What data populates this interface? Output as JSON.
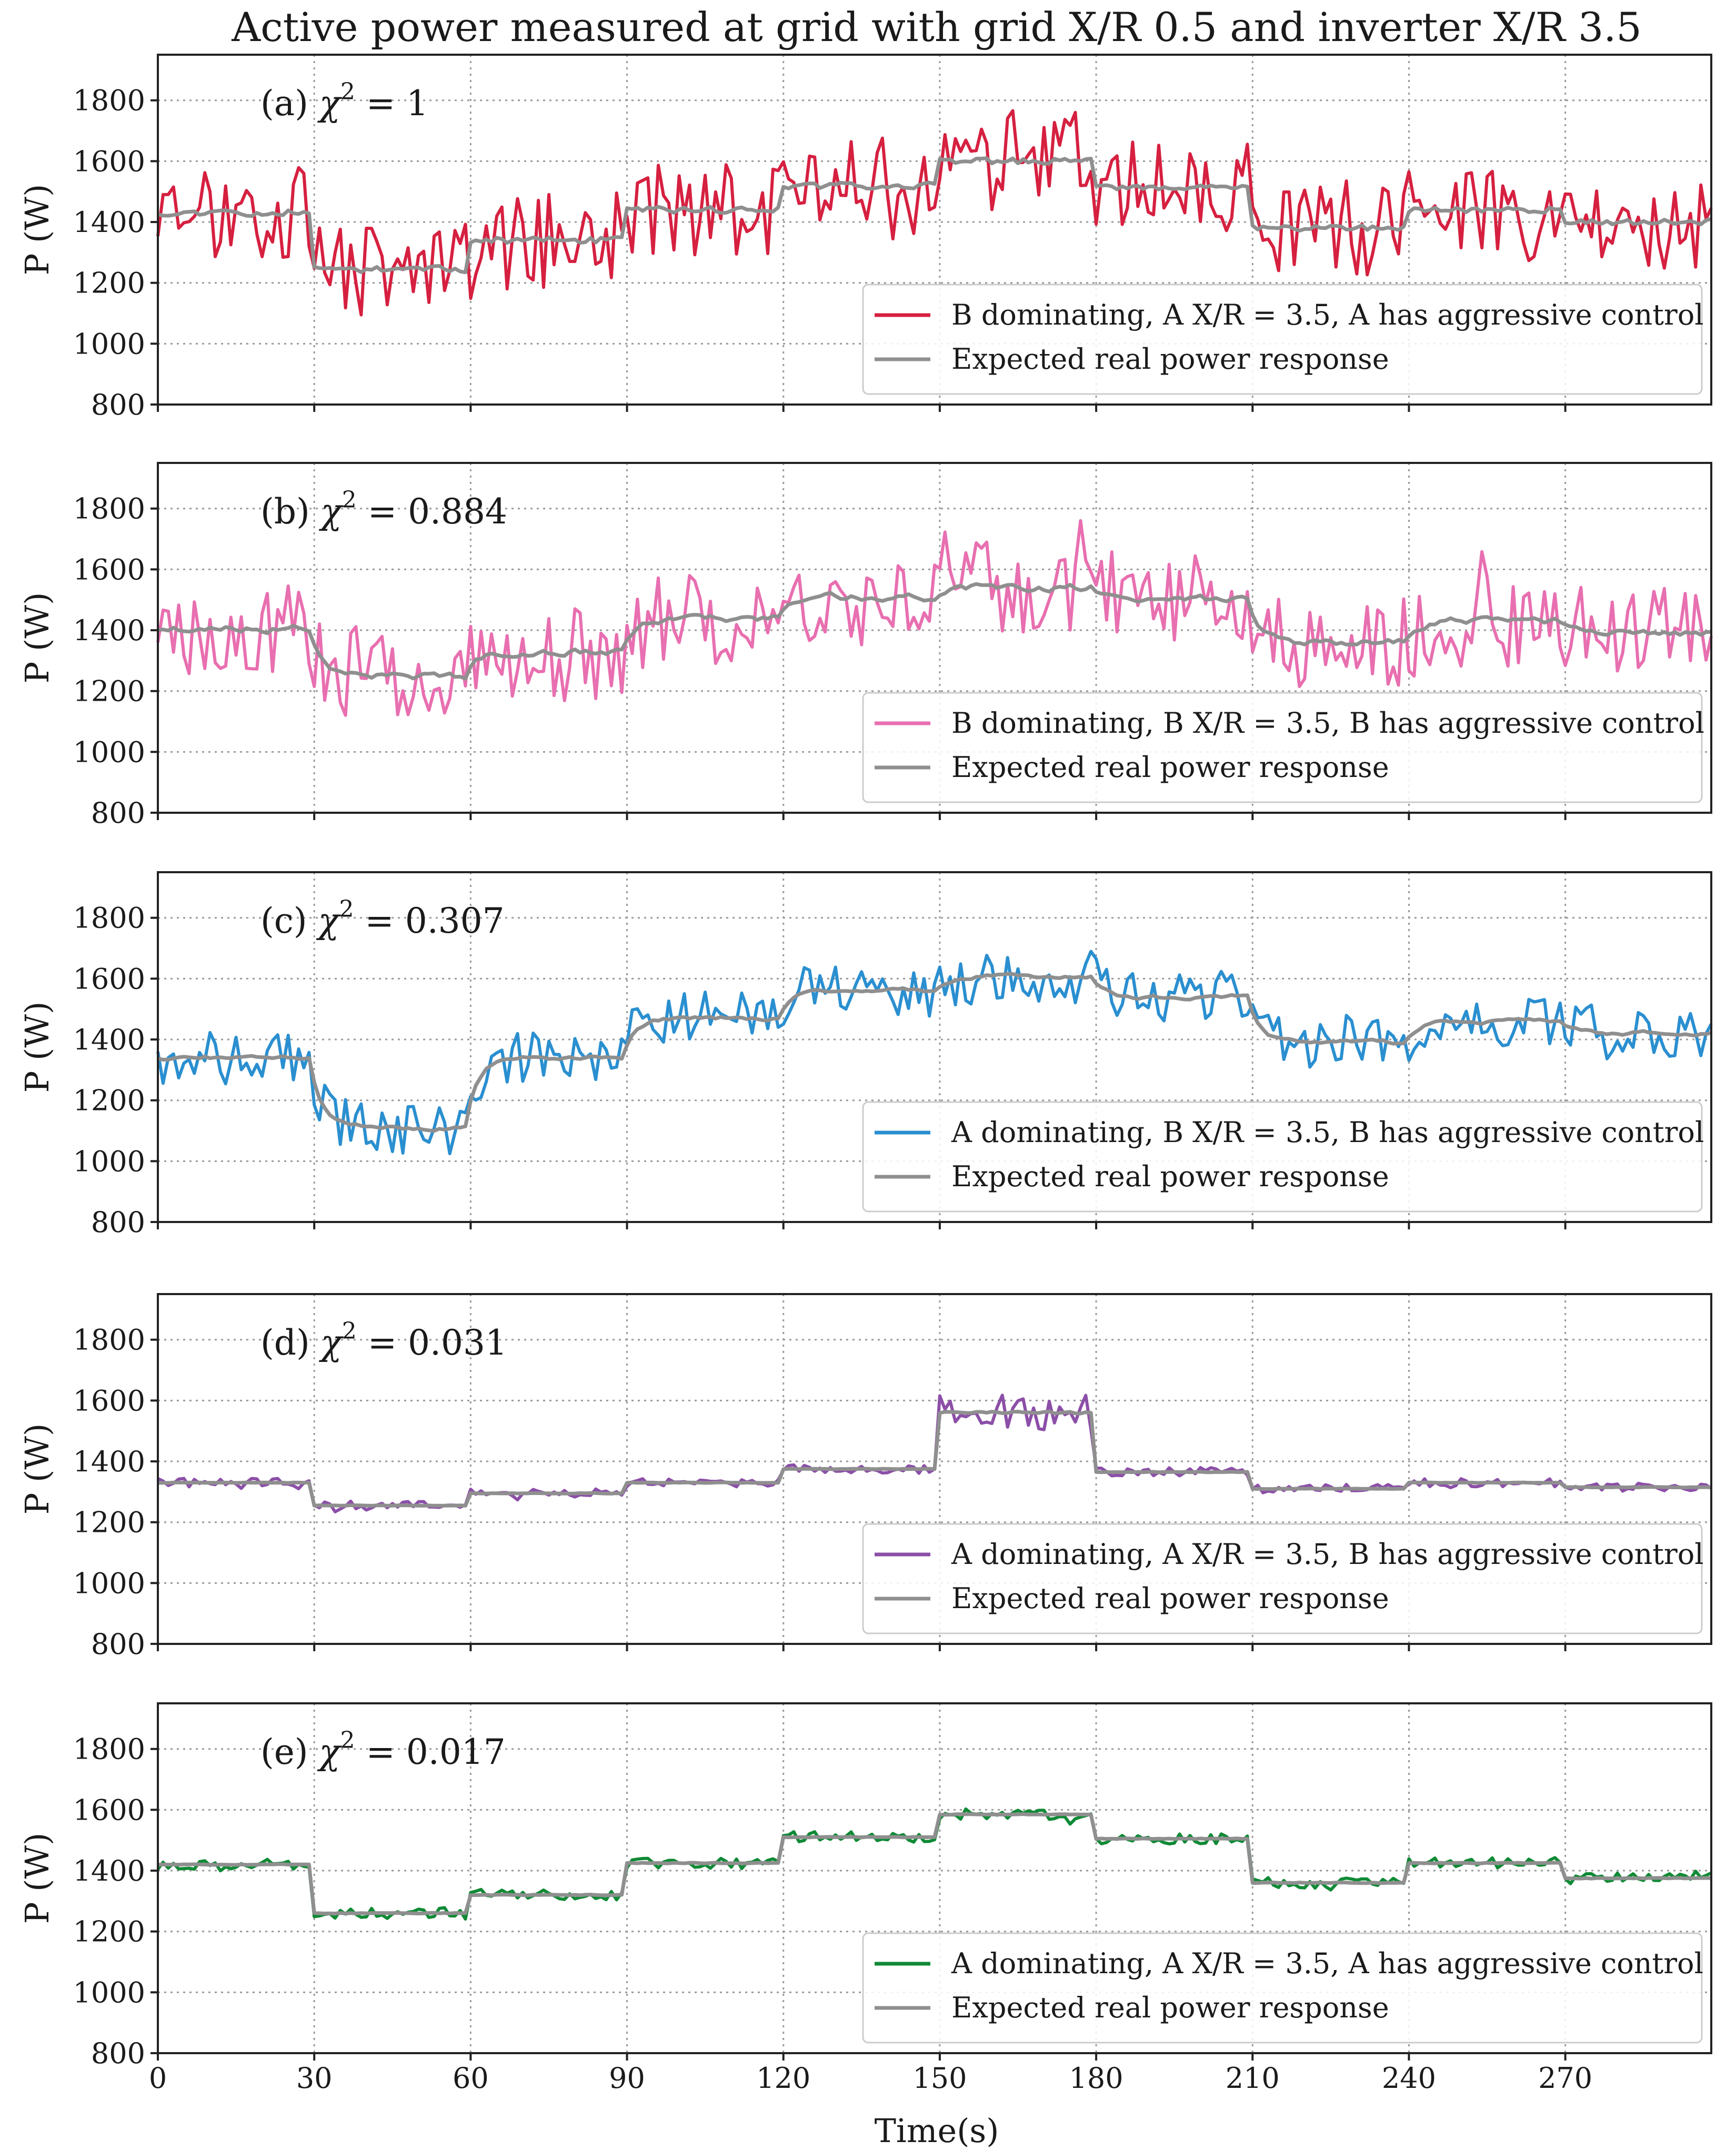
{
  "figure": {
    "title": "Active power measured at grid with grid X/R 0.5 and inverter X/R 3.5",
    "xlabel": "Time(s)",
    "ylabel": "P (W)"
  },
  "chart_data": [
    {
      "type": "line",
      "panel": "a",
      "annotation_prefix": "(a)",
      "chi_symbol": "χ",
      "chi_exponent": "2",
      "chi_value": "= 1",
      "xlim": [
        0,
        298
      ],
      "ylim": [
        800,
        1950
      ],
      "xticks": [
        0,
        30,
        60,
        90,
        120,
        150,
        180,
        210,
        240,
        270
      ],
      "yticks": [
        800,
        1000,
        1200,
        1400,
        1600,
        1800
      ],
      "legend_position": "lower-right",
      "noise": 160,
      "seed": 11,
      "series": [
        {
          "name": "B dominating, A X/R = 3.5, A has aggressive control",
          "color": "#d62040",
          "role": "measured"
        },
        {
          "name": "Expected real power response",
          "color": "#8f8f8f",
          "role": "expected"
        }
      ],
      "segments": [
        {
          "start": 0,
          "end": 30,
          "level": 1430
        },
        {
          "start": 30,
          "end": 60,
          "level": 1245
        },
        {
          "start": 60,
          "end": 90,
          "level": 1340
        },
        {
          "start": 90,
          "end": 120,
          "level": 1440
        },
        {
          "start": 120,
          "end": 150,
          "level": 1520
        },
        {
          "start": 150,
          "end": 180,
          "level": 1600
        },
        {
          "start": 180,
          "end": 210,
          "level": 1510
        },
        {
          "start": 210,
          "end": 240,
          "level": 1380
        },
        {
          "start": 240,
          "end": 270,
          "level": 1440
        },
        {
          "start": 270,
          "end": 298,
          "level": 1400
        }
      ]
    },
    {
      "type": "line",
      "panel": "b",
      "annotation_prefix": "(b)",
      "chi_symbol": "χ",
      "chi_exponent": "2",
      "chi_value": "= 0.884",
      "xlim": [
        0,
        298
      ],
      "ylim": [
        800,
        1950
      ],
      "xticks": [
        0,
        30,
        60,
        90,
        120,
        150,
        180,
        210,
        240,
        270
      ],
      "yticks": [
        800,
        1000,
        1200,
        1400,
        1600,
        1800
      ],
      "legend_position": "lower-right",
      "noise": 150,
      "seed": 23,
      "series": [
        {
          "name": "B dominating, B X/R = 3.5, B has aggressive control",
          "color": "#e86fb0",
          "role": "measured"
        },
        {
          "name": "Expected real power response",
          "color": "#8f8f8f",
          "role": "expected"
        }
      ],
      "segments": [
        {
          "start": 0,
          "end": 30,
          "level": 1405
        },
        {
          "start": 30,
          "end": 60,
          "level": 1250
        },
        {
          "start": 60,
          "end": 90,
          "level": 1330
        },
        {
          "start": 90,
          "end": 120,
          "level": 1440
        },
        {
          "start": 120,
          "end": 150,
          "level": 1510
        },
        {
          "start": 150,
          "end": 180,
          "level": 1540
        },
        {
          "start": 180,
          "end": 210,
          "level": 1500
        },
        {
          "start": 210,
          "end": 240,
          "level": 1360
        },
        {
          "start": 240,
          "end": 270,
          "level": 1430
        },
        {
          "start": 270,
          "end": 298,
          "level": 1390
        }
      ]
    },
    {
      "type": "line",
      "panel": "c",
      "annotation_prefix": "(c)",
      "chi_symbol": "χ",
      "chi_exponent": "2",
      "chi_value": "= 0.307",
      "xlim": [
        0,
        298
      ],
      "ylim": [
        800,
        1950
      ],
      "xticks": [
        0,
        30,
        60,
        90,
        120,
        150,
        180,
        210,
        240,
        270
      ],
      "yticks": [
        800,
        1000,
        1200,
        1400,
        1600,
        1800
      ],
      "legend_position": "lower-right",
      "noise": 85,
      "seed": 37,
      "series": [
        {
          "name": "A dominating, B X/R = 3.5, B has aggressive control",
          "color": "#2a8fd0",
          "role": "measured"
        },
        {
          "name": "Expected real power response",
          "color": "#8f8f8f",
          "role": "expected"
        }
      ],
      "segments": [
        {
          "start": 0,
          "end": 30,
          "level": 1340
        },
        {
          "start": 30,
          "end": 60,
          "level": 1110
        },
        {
          "start": 60,
          "end": 90,
          "level": 1340
        },
        {
          "start": 90,
          "end": 120,
          "level": 1470
        },
        {
          "start": 120,
          "end": 150,
          "level": 1560
        },
        {
          "start": 150,
          "end": 180,
          "level": 1610
        },
        {
          "start": 180,
          "end": 210,
          "level": 1540
        },
        {
          "start": 210,
          "end": 240,
          "level": 1390
        },
        {
          "start": 240,
          "end": 270,
          "level": 1460
        },
        {
          "start": 270,
          "end": 298,
          "level": 1420
        }
      ]
    },
    {
      "type": "line",
      "panel": "d",
      "annotation_prefix": "(d)",
      "chi_symbol": "χ",
      "chi_exponent": "2",
      "chi_value": "= 0.031",
      "xlim": [
        0,
        298
      ],
      "ylim": [
        800,
        1950
      ],
      "xticks": [
        0,
        30,
        60,
        90,
        120,
        150,
        180,
        210,
        240,
        270
      ],
      "yticks": [
        800,
        1000,
        1200,
        1400,
        1600,
        1800
      ],
      "legend_position": "lower-right",
      "noise": 14,
      "seed": 41,
      "series": [
        {
          "name": "A dominating, A X/R = 3.5, B has aggressive control",
          "color": "#8c4fa8",
          "role": "measured"
        },
        {
          "name": "Expected real power response",
          "color": "#8f8f8f",
          "role": "expected"
        }
      ],
      "segments": [
        {
          "start": 0,
          "end": 30,
          "level": 1330
        },
        {
          "start": 30,
          "end": 60,
          "level": 1255
        },
        {
          "start": 60,
          "end": 90,
          "level": 1295
        },
        {
          "start": 90,
          "end": 120,
          "level": 1330
        },
        {
          "start": 120,
          "end": 150,
          "level": 1375
        },
        {
          "start": 150,
          "end": 180,
          "level": 1560,
          "noise": 60
        },
        {
          "start": 180,
          "end": 210,
          "level": 1365
        },
        {
          "start": 210,
          "end": 240,
          "level": 1310
        },
        {
          "start": 240,
          "end": 270,
          "level": 1330
        },
        {
          "start": 270,
          "end": 298,
          "level": 1315
        }
      ]
    },
    {
      "type": "line",
      "panel": "e",
      "annotation_prefix": "(e)",
      "chi_symbol": "χ",
      "chi_exponent": "2",
      "chi_value": "= 0.017",
      "xlim": [
        0,
        298
      ],
      "ylim": [
        800,
        1950
      ],
      "xticks": [
        0,
        30,
        60,
        90,
        120,
        150,
        180,
        210,
        240,
        270
      ],
      "yticks": [
        800,
        1000,
        1200,
        1400,
        1600,
        1800
      ],
      "legend_position": "lower-right",
      "noise": 18,
      "seed": 53,
      "series": [
        {
          "name": "A dominating, A X/R = 3.5, A has aggressive control",
          "color": "#0f8a35",
          "role": "measured"
        },
        {
          "name": "Expected real power response",
          "color": "#8f8f8f",
          "role": "expected"
        }
      ],
      "segments": [
        {
          "start": 0,
          "end": 30,
          "level": 1420
        },
        {
          "start": 30,
          "end": 60,
          "level": 1260
        },
        {
          "start": 60,
          "end": 90,
          "level": 1320
        },
        {
          "start": 90,
          "end": 120,
          "level": 1425
        },
        {
          "start": 120,
          "end": 150,
          "level": 1510
        },
        {
          "start": 150,
          "end": 180,
          "level": 1585
        },
        {
          "start": 180,
          "end": 210,
          "level": 1505
        },
        {
          "start": 210,
          "end": 240,
          "level": 1360
        },
        {
          "start": 240,
          "end": 270,
          "level": 1425
        },
        {
          "start": 270,
          "end": 298,
          "level": 1375
        }
      ]
    }
  ]
}
